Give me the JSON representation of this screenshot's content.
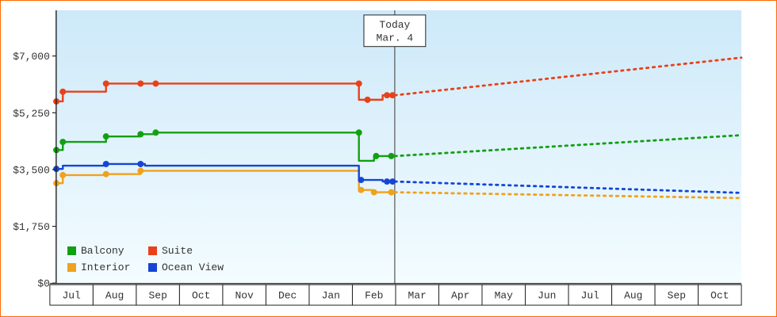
{
  "theme": {
    "frame_border": "#ff6a00",
    "plot_gradient_top": "#cde9f9",
    "plot_gradient_bottom": "#f4fcff",
    "today_line": "#555555",
    "axis": "#222222",
    "text": "#333333"
  },
  "chart_data": {
    "type": "line",
    "title": "",
    "xlabel": "",
    "ylabel": "",
    "grid": false,
    "legend_position": "bottom-left",
    "x_axis": {
      "tick_labels": [
        "Jul",
        "Aug",
        "Sep",
        "Oct",
        "Nov",
        "Dec",
        "Jan",
        "Feb",
        "Mar",
        "Apr",
        "May",
        "Jun",
        "Jul",
        "Aug",
        "Sep",
        "Oct"
      ]
    },
    "y_axis": {
      "max_value": 7000,
      "ticks": [
        {
          "label": "$0",
          "value": 0
        },
        {
          "label": "$1,750",
          "value": 1750
        },
        {
          "label": "$3,500",
          "value": 3500
        },
        {
          "label": "$5,250",
          "value": 5250
        },
        {
          "label": "$7,000",
          "value": 7000
        }
      ]
    },
    "today": {
      "label_line1": "Today",
      "label_line2": "Mar. 4",
      "month_fraction": 7.98
    },
    "series": [
      {
        "name": "Balcony",
        "color": "#12a012",
        "points": [
          [
            0.15,
            4100
          ],
          [
            0.3,
            4100
          ],
          [
            0.3,
            4350
          ],
          [
            1.3,
            4350
          ],
          [
            1.3,
            4520
          ],
          [
            2.1,
            4520
          ],
          [
            2.1,
            4590
          ],
          [
            2.45,
            4590
          ],
          [
            2.45,
            4640
          ],
          [
            7.15,
            4640
          ],
          [
            7.15,
            3770
          ],
          [
            7.5,
            3770
          ],
          [
            7.5,
            3915
          ],
          [
            7.98,
            3915
          ]
        ],
        "markers": [
          [
            0.15,
            4100
          ],
          [
            0.3,
            4350
          ],
          [
            1.3,
            4520
          ],
          [
            2.1,
            4590
          ],
          [
            2.45,
            4640
          ],
          [
            7.15,
            4640
          ],
          [
            7.55,
            3915
          ],
          [
            7.9,
            3915
          ]
        ],
        "projection": [
          [
            7.98,
            3915
          ],
          [
            16,
            4560
          ]
        ]
      },
      {
        "name": "Suite",
        "color": "#e8411a",
        "points": [
          [
            0.15,
            5600
          ],
          [
            0.3,
            5600
          ],
          [
            0.3,
            5900
          ],
          [
            1.3,
            5900
          ],
          [
            1.3,
            6150
          ],
          [
            7.15,
            6150
          ],
          [
            7.15,
            5650
          ],
          [
            7.7,
            5650
          ],
          [
            7.7,
            5790
          ],
          [
            7.98,
            5790
          ]
        ],
        "markers": [
          [
            0.15,
            5600
          ],
          [
            0.3,
            5900
          ],
          [
            1.3,
            6150
          ],
          [
            2.1,
            6150
          ],
          [
            2.45,
            6150
          ],
          [
            7.15,
            6150
          ],
          [
            7.35,
            5650
          ],
          [
            7.8,
            5790
          ],
          [
            7.93,
            5790
          ]
        ],
        "projection": [
          [
            7.98,
            5790
          ],
          [
            16,
            6950
          ]
        ]
      },
      {
        "name": "Interior",
        "color": "#f0a11d",
        "points": [
          [
            0.15,
            3080
          ],
          [
            0.3,
            3080
          ],
          [
            0.3,
            3330
          ],
          [
            1.3,
            3330
          ],
          [
            1.3,
            3360
          ],
          [
            2.1,
            3360
          ],
          [
            2.1,
            3460
          ],
          [
            7.15,
            3460
          ],
          [
            7.15,
            2870
          ],
          [
            7.45,
            2870
          ],
          [
            7.45,
            2800
          ],
          [
            7.98,
            2800
          ]
        ],
        "markers": [
          [
            0.15,
            3080
          ],
          [
            0.3,
            3330
          ],
          [
            1.3,
            3360
          ],
          [
            2.1,
            3460
          ],
          [
            7.2,
            2870
          ],
          [
            7.5,
            2800
          ],
          [
            7.9,
            2800
          ]
        ],
        "projection": [
          [
            7.98,
            2800
          ],
          [
            16,
            2620
          ]
        ]
      },
      {
        "name": "Ocean View",
        "color": "#1545d6",
        "points": [
          [
            0.15,
            3520
          ],
          [
            0.3,
            3520
          ],
          [
            0.3,
            3620
          ],
          [
            1.3,
            3620
          ],
          [
            1.3,
            3670
          ],
          [
            2.2,
            3670
          ],
          [
            2.2,
            3620
          ],
          [
            7.15,
            3620
          ],
          [
            7.15,
            3180
          ],
          [
            7.7,
            3180
          ],
          [
            7.7,
            3130
          ],
          [
            7.98,
            3130
          ]
        ],
        "markers": [
          [
            0.15,
            3520
          ],
          [
            1.3,
            3670
          ],
          [
            2.1,
            3670
          ],
          [
            7.2,
            3180
          ],
          [
            7.8,
            3130
          ],
          [
            7.93,
            3130
          ]
        ],
        "projection": [
          [
            7.98,
            3130
          ],
          [
            16,
            2780
          ]
        ]
      }
    ]
  }
}
